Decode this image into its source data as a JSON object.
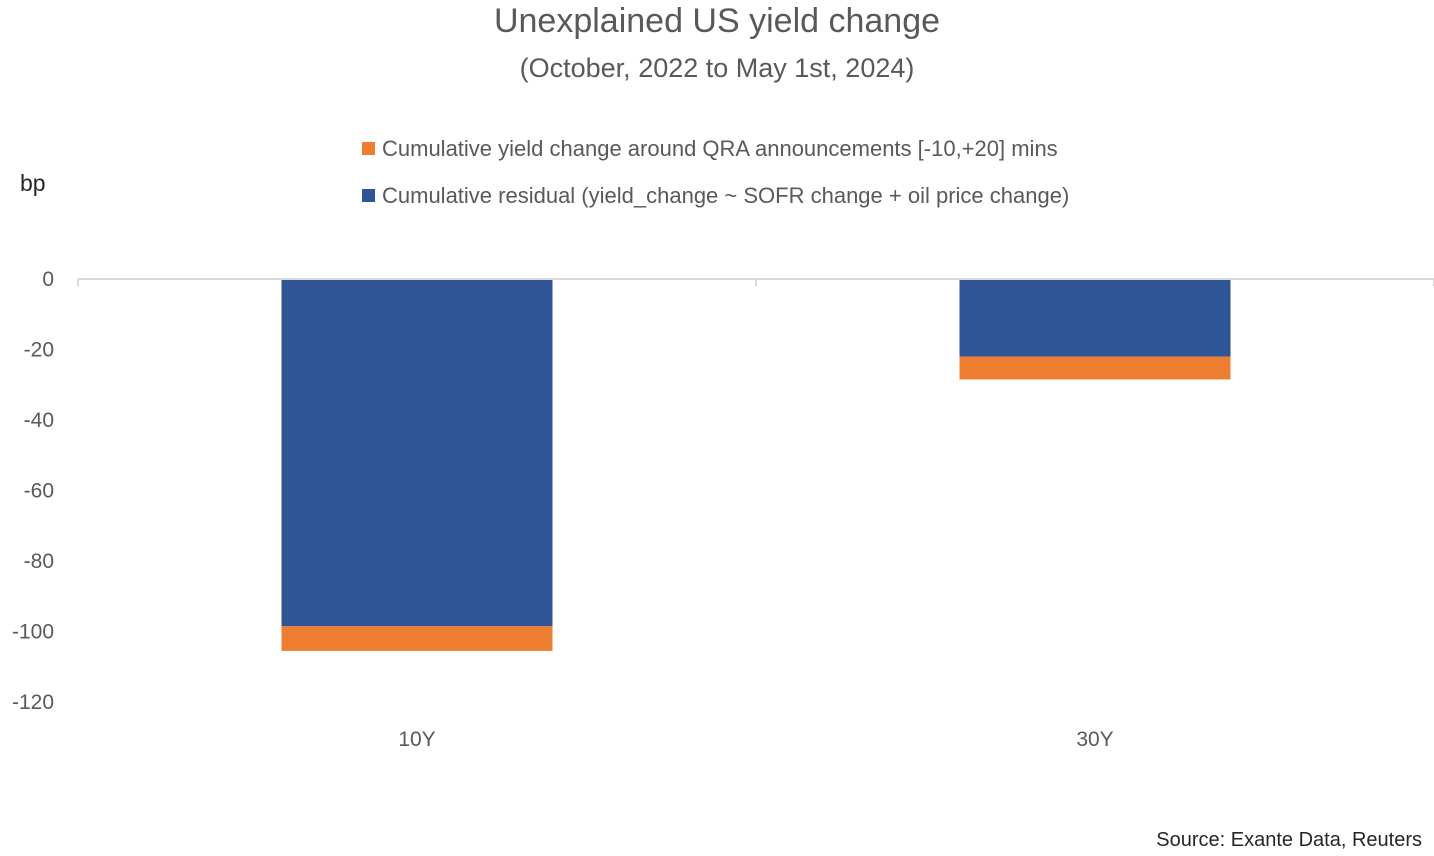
{
  "title": "Unexplained US yield change",
  "subtitle": "(October, 2022 to May 1st, 2024)",
  "unit_label": "bp",
  "source": "Source: Exante Data, Reuters",
  "legend": [
    {
      "label": "Cumulative yield change around QRA announcements [-10,+20] mins",
      "color": "#ED7D31"
    },
    {
      "label": "Cumulative residual  (yield_change ~ SOFR change + oil price change)",
      "color": "#2F5597"
    }
  ],
  "chart_data": {
    "type": "bar",
    "stacked": true,
    "categories": [
      "10Y",
      "30Y"
    ],
    "series": [
      {
        "name": "Cumulative residual  (yield_change ~ SOFR change + oil price change)",
        "values": [
          -98.5,
          -22
        ],
        "color": "#2F5597"
      },
      {
        "name": "Cumulative yield change around QRA announcements [-10,+20] mins",
        "values": [
          -7,
          -6.5
        ],
        "color": "#ED7D31"
      }
    ],
    "ylabel": "bp",
    "ylim": [
      -120,
      0
    ],
    "yticks": [
      0,
      -20,
      -40,
      -60,
      -80,
      -100,
      -120
    ],
    "grid": false,
    "legend_position": "top"
  }
}
